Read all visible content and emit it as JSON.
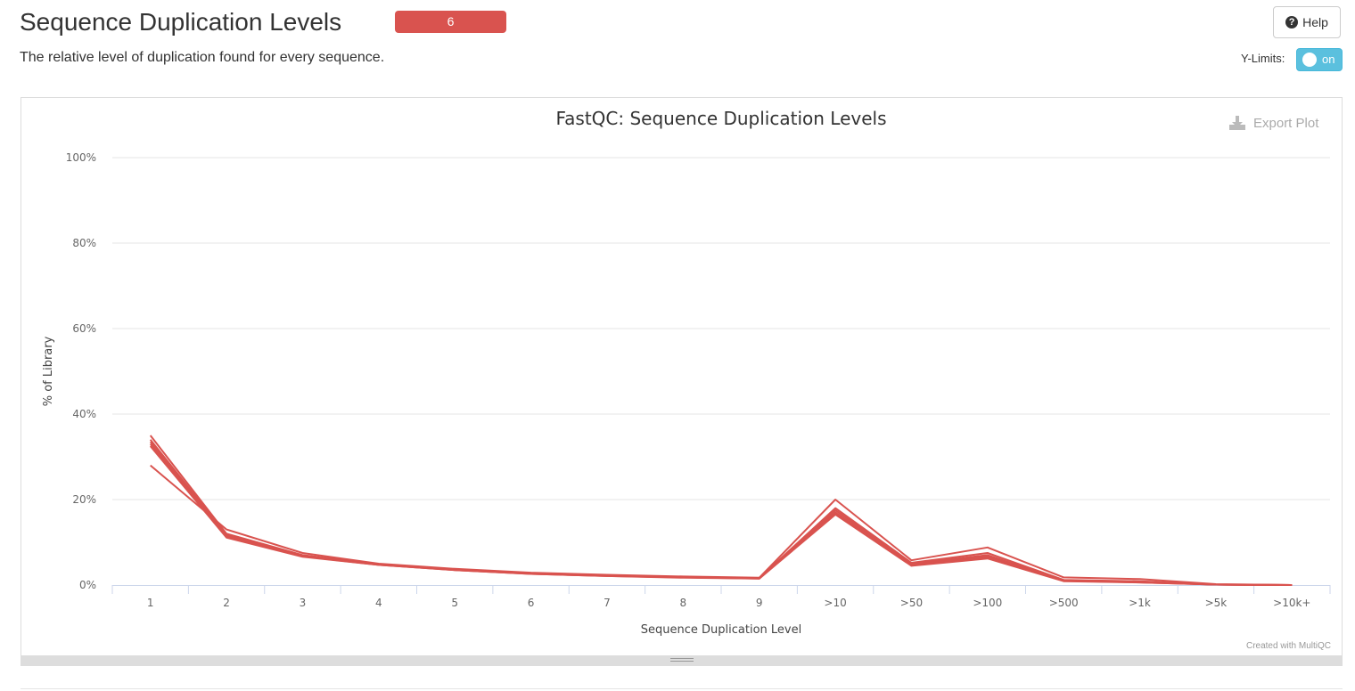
{
  "header": {
    "title": "Sequence Duplication Levels",
    "badge": "6",
    "description": "The relative level of duplication found for every sequence.",
    "help_label": "Help",
    "ylimits_label": "Y-Limits:",
    "ylimits_toggle": "on"
  },
  "plot": {
    "export_label": "Export Plot",
    "credit": "Created with MultiQC"
  },
  "colors": {
    "series": "#d9534f",
    "badge": "#d9534f",
    "toggle": "#5bc0de"
  },
  "chart_data": {
    "type": "line",
    "title": "FastQC: Sequence Duplication Levels",
    "xlabel": "Sequence Duplication Level",
    "ylabel": "% of Library",
    "categories": [
      "1",
      "2",
      "3",
      "4",
      "5",
      "6",
      "7",
      "8",
      "9",
      ">10",
      ">50",
      ">100",
      ">500",
      ">1k",
      ">5k",
      ">10k+"
    ],
    "yticks": [
      "0%",
      "20%",
      "40%",
      "60%",
      "80%",
      "100%"
    ],
    "ylim": [
      0,
      100
    ],
    "grid": true,
    "series": [
      {
        "values": [
          28.0,
          13.0,
          7.5,
          5.0,
          3.8,
          2.9,
          2.4,
          2.0,
          1.7,
          20.0,
          5.8,
          8.8,
          1.8,
          1.4,
          0.2,
          0.0
        ]
      },
      {
        "values": [
          35.0,
          12.0,
          7.0,
          4.9,
          3.7,
          2.8,
          2.3,
          1.9,
          1.6,
          18.0,
          5.2,
          7.5,
          1.2,
          0.9,
          0.1,
          0.0
        ]
      },
      {
        "values": [
          34.0,
          11.7,
          6.9,
          4.8,
          3.6,
          2.7,
          2.2,
          1.8,
          1.6,
          17.5,
          5.0,
          7.0,
          1.1,
          0.8,
          0.1,
          0.0
        ]
      },
      {
        "values": [
          33.5,
          11.5,
          6.8,
          4.8,
          3.6,
          2.7,
          2.2,
          1.8,
          1.6,
          17.0,
          4.8,
          6.8,
          1.0,
          0.7,
          0.1,
          0.0
        ]
      },
      {
        "values": [
          33.0,
          11.3,
          6.7,
          4.7,
          3.5,
          2.6,
          2.1,
          1.8,
          1.5,
          16.8,
          4.7,
          6.5,
          1.0,
          0.6,
          0.1,
          0.0
        ]
      },
      {
        "values": [
          32.5,
          11.1,
          6.6,
          4.7,
          3.5,
          2.6,
          2.1,
          1.7,
          1.5,
          16.5,
          4.5,
          6.2,
          0.9,
          0.6,
          0.1,
          0.0
        ]
      }
    ]
  }
}
